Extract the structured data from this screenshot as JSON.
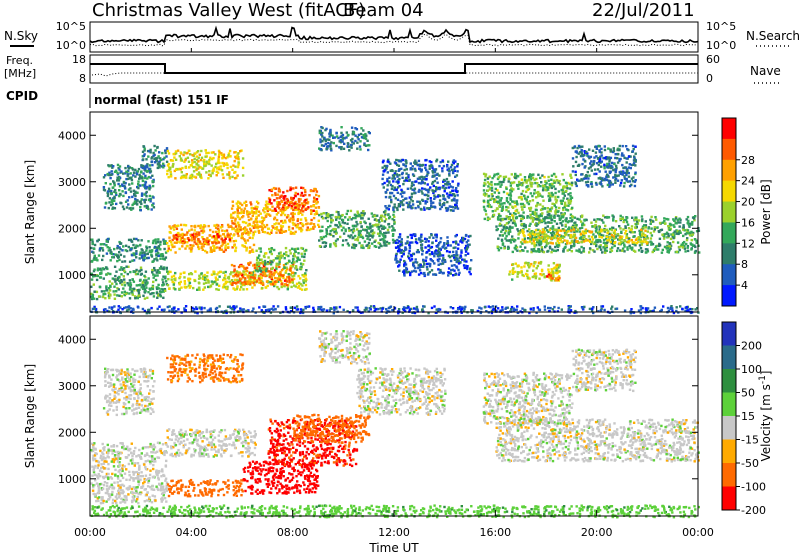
{
  "header": {
    "station": "Christmas Valley West (fitACF)",
    "beam": "Beam 04",
    "date": "22/Jul/2011"
  },
  "labels": {
    "nsky": "N.Sky",
    "nsearch": "N.Search",
    "freq_line1": "Freq.",
    "freq_line2": "[MHz]",
    "nave": "Nave",
    "cpid": "CPID",
    "cpid_value": "normal (fast) 151 IF"
  },
  "noise_panel": {
    "left_ticks": [
      "10^5",
      "10^0"
    ],
    "right_ticks": [
      "10^5",
      "10^0"
    ]
  },
  "freq_panel": {
    "left_ticks": [
      "18",
      "8"
    ],
    "right_ticks": [
      "60",
      "0"
    ]
  },
  "colors": {
    "power": [
      "#0019ff",
      "#1f5cbd",
      "#2e7d6a",
      "#33a85a",
      "#9bd12c",
      "#f5d800",
      "#ffa000",
      "#ff5a00",
      "#ff0000"
    ],
    "velocity": [
      "#2233bb",
      "#2a6b8a",
      "#2e8f3f",
      "#5dd13a",
      "#c8c8c8",
      "#ffaa00",
      "#ff6a00",
      "#ff0000"
    ]
  },
  "chart_data": [
    {
      "type": "heatmap",
      "panel": "power",
      "ylabel": "Slant Range [km]",
      "ylim": [
        200,
        4500
      ],
      "xlim": [
        "00:00",
        "24:00"
      ],
      "yticks": [
        "1000",
        "2000",
        "3000",
        "4000"
      ],
      "colorbar": {
        "label": "Power [dB]",
        "ticks": [
          "4",
          "8",
          "12",
          "16",
          "20",
          "24",
          "28"
        ],
        "range": [
          0,
          32
        ]
      },
      "regions": [
        {
          "t0": 0.0,
          "t1": 3.0,
          "r0": 500,
          "r1": 1200,
          "v": 12
        },
        {
          "t0": 0.0,
          "t1": 3.0,
          "r0": 1300,
          "r1": 1800,
          "v": 10
        },
        {
          "t0": 0.5,
          "t1": 2.5,
          "r0": 2400,
          "r1": 3400,
          "v": 9
        },
        {
          "t0": 2.0,
          "t1": 3.0,
          "r0": 3300,
          "r1": 3800,
          "v": 8
        },
        {
          "t0": 3.0,
          "t1": 6.5,
          "r0": 1500,
          "r1": 2100,
          "v": 22
        },
        {
          "t0": 3.2,
          "t1": 5.5,
          "r0": 1700,
          "r1": 1900,
          "v": 27
        },
        {
          "t0": 3.0,
          "t1": 6.0,
          "r0": 3100,
          "r1": 3700,
          "v": 19
        },
        {
          "t0": 3.0,
          "t1": 8.5,
          "r0": 700,
          "r1": 1100,
          "v": 17
        },
        {
          "t0": 5.5,
          "t1": 8.0,
          "r0": 800,
          "r1": 1300,
          "v": 25
        },
        {
          "t0": 5.5,
          "t1": 9.0,
          "r0": 1900,
          "r1": 2600,
          "v": 22
        },
        {
          "t0": 7.0,
          "t1": 9.0,
          "r0": 2400,
          "r1": 2900,
          "v": 27
        },
        {
          "t0": 6.5,
          "t1": 8.5,
          "r0": 1100,
          "r1": 1600,
          "v": 14
        },
        {
          "t0": 9.0,
          "t1": 12.0,
          "r0": 1600,
          "r1": 2400,
          "v": 12
        },
        {
          "t0": 9.0,
          "t1": 11.0,
          "r0": 3700,
          "r1": 4200,
          "v": 8
        },
        {
          "t0": 11.5,
          "t1": 14.5,
          "r0": 2400,
          "r1": 3500,
          "v": 6
        },
        {
          "t0": 12.0,
          "t1": 15.0,
          "r0": 1000,
          "r1": 1900,
          "v": 5
        },
        {
          "t0": 15.5,
          "t1": 19.0,
          "r0": 2200,
          "r1": 3200,
          "v": 14
        },
        {
          "t0": 16.0,
          "t1": 24.0,
          "r0": 1500,
          "r1": 2300,
          "v": 12
        },
        {
          "t0": 17.0,
          "t1": 22.0,
          "r0": 1700,
          "r1": 2000,
          "v": 19
        },
        {
          "t0": 16.5,
          "t1": 18.5,
          "r0": 900,
          "r1": 1300,
          "v": 18
        },
        {
          "t0": 18.0,
          "t1": 18.5,
          "r0": 850,
          "r1": 1050,
          "v": 26
        },
        {
          "t0": 19.0,
          "t1": 21.5,
          "r0": 2900,
          "r1": 3800,
          "v": 7
        },
        {
          "t0": 0.0,
          "t1": 24.0,
          "r0": 200,
          "r1": 350,
          "v": 5
        }
      ]
    },
    {
      "type": "heatmap",
      "panel": "velocity",
      "ylabel": "Slant Range [km]",
      "xlabel": "Time UT",
      "ylim": [
        200,
        4500
      ],
      "xlim": [
        "00:00",
        "24:00"
      ],
      "yticks": [
        "1000",
        "2000",
        "3000",
        "4000"
      ],
      "xticks": [
        "00:00",
        "04:00",
        "08:00",
        "12:00",
        "16:00",
        "20:00",
        "00:00"
      ],
      "colorbar": {
        "label": "Velocity [m s^-1]",
        "ticks": [
          "200",
          "100",
          "50",
          "15",
          "-15",
          "-50",
          "-100",
          "-200"
        ],
        "range": [
          -250,
          250
        ]
      },
      "regions": [
        {
          "t0": 0.0,
          "t1": 3.0,
          "r0": 500,
          "r1": 1800,
          "v": 0
        },
        {
          "t0": 0.5,
          "t1": 2.5,
          "r0": 2400,
          "r1": 3400,
          "v": 0
        },
        {
          "t0": 3.0,
          "t1": 6.5,
          "r0": 1500,
          "r1": 2100,
          "v": 0
        },
        {
          "t0": 3.0,
          "t1": 6.0,
          "r0": 3100,
          "r1": 3700,
          "v": -60
        },
        {
          "t0": 3.0,
          "t1": 6.0,
          "r0": 650,
          "r1": 1000,
          "v": -70
        },
        {
          "t0": 6.0,
          "t1": 9.0,
          "r0": 700,
          "r1": 1400,
          "v": -160
        },
        {
          "t0": 7.0,
          "t1": 10.5,
          "r0": 1300,
          "r1": 2300,
          "v": -110
        },
        {
          "t0": 8.0,
          "t1": 11.0,
          "r0": 1800,
          "r1": 2400,
          "v": -70
        },
        {
          "t0": 9.0,
          "t1": 11.0,
          "r0": 3500,
          "r1": 4200,
          "v": 0
        },
        {
          "t0": 10.5,
          "t1": 14.0,
          "r0": 2400,
          "r1": 3400,
          "v": 0
        },
        {
          "t0": 15.5,
          "t1": 19.0,
          "r0": 2200,
          "r1": 3300,
          "v": 0
        },
        {
          "t0": 16.0,
          "t1": 24.0,
          "r0": 1400,
          "r1": 2300,
          "v": 0
        },
        {
          "t0": 19.0,
          "t1": 21.5,
          "r0": 2900,
          "r1": 3800,
          "v": 0
        },
        {
          "t0": 0.0,
          "t1": 24.0,
          "r0": 200,
          "r1": 450,
          "v": 35
        }
      ]
    }
  ]
}
